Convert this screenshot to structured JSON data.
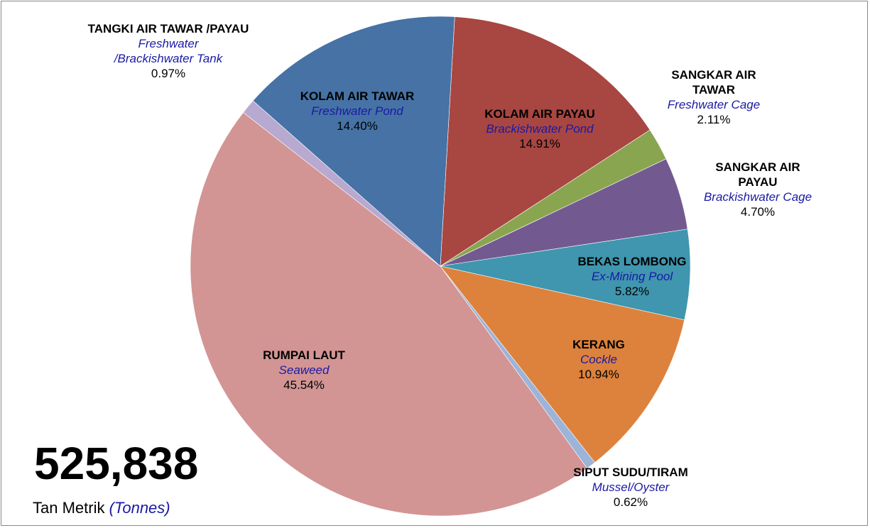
{
  "chart_data": {
    "type": "pie",
    "categories": [
      "KOLAM AIR PAYAU",
      "SANGKAR AIR TAWAR",
      "SANGKAR AIR PAYAU",
      "BEKAS LOMBONG",
      "KERANG",
      "SIPUT SUDU/TIRAM",
      "RUMPAI LAUT",
      "TANGKI AIR TAWAR /PAYAU",
      "KOLAM AIR TAWAR"
    ],
    "categories_en": [
      "Brackishwater Pond",
      "Freshwater Cage",
      "Brackishwater Cage",
      "Ex-Mining Pool",
      "Cockle",
      "Mussel/Oyster",
      "Seaweed",
      "Freshwater /Brackishwater Tank",
      "Freshwater Pond"
    ],
    "values": [
      14.91,
      2.11,
      4.7,
      5.82,
      10.94,
      0.62,
      45.54,
      0.97,
      14.4
    ],
    "value_labels": [
      "14.91%",
      "2.11%",
      "4.70%",
      "5.82%",
      "10.94%",
      "0.62%",
      "45.54%",
      "0.97%",
      "14.40%"
    ],
    "colors": [
      "#a84642",
      "#8aa54f",
      "#725a91",
      "#3f96ae",
      "#dc823d",
      "#9db4d9",
      "#d29594",
      "#b8a9d0",
      "#4672a5"
    ],
    "total": {
      "value": 525838,
      "label": "525,838"
    },
    "unit": "Tan Metrik",
    "unit_en": "(Tonnes)"
  }
}
